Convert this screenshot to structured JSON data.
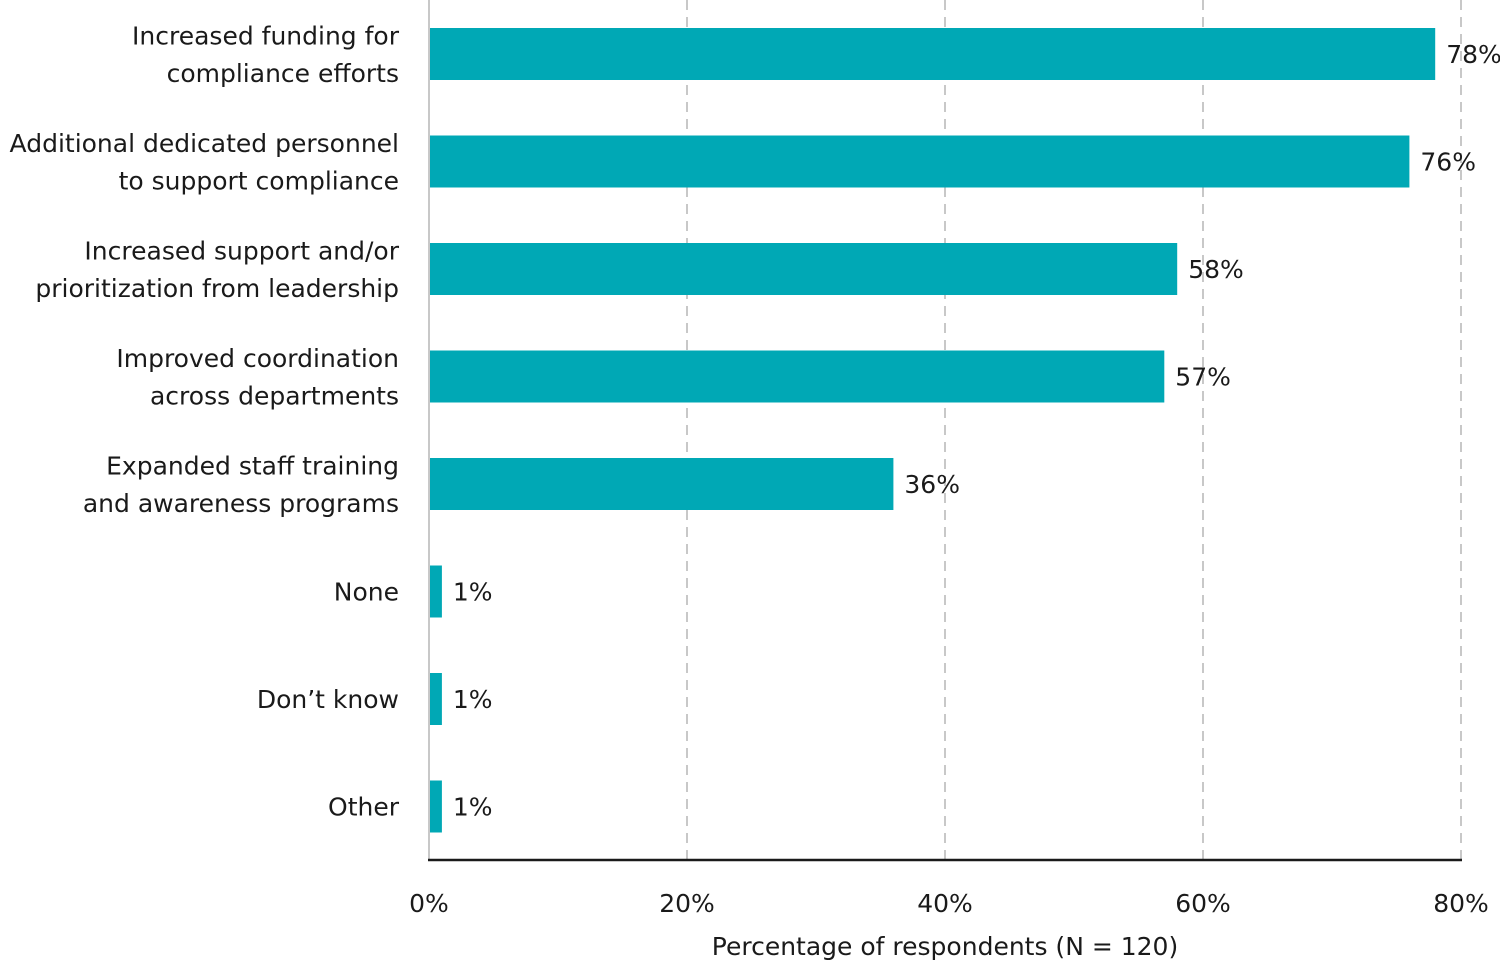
{
  "chart_data": {
    "type": "bar",
    "orientation": "horizontal",
    "categories": [
      [
        "Increased funding for",
        "compliance efforts"
      ],
      [
        "Additional dedicated personnel",
        "to support compliance"
      ],
      [
        "Increased support and/or",
        "prioritization from leadership"
      ],
      [
        "Improved coordination",
        "across departments"
      ],
      [
        "Expanded staff training",
        "and awareness programs"
      ],
      [
        "None"
      ],
      [
        "Don’t know"
      ],
      [
        "Other"
      ]
    ],
    "values": [
      78,
      76,
      58,
      57,
      36,
      1,
      1,
      1
    ],
    "value_labels": [
      "78%",
      "76%",
      "58%",
      "57%",
      "36%",
      "1%",
      "1%",
      "1%"
    ],
    "xlim": [
      0,
      80
    ],
    "xticks": [
      0,
      20,
      40,
      60,
      80
    ],
    "xtick_labels": [
      "0%",
      "20%",
      "40%",
      "60%",
      "80%"
    ],
    "xlabel": "Percentage of respondents (N = 120)",
    "grid": "vertical dashed",
    "colors": {
      "bar": "#00a8b5",
      "grid": "#c8c8c8",
      "axis": "#1a1a1a"
    }
  }
}
